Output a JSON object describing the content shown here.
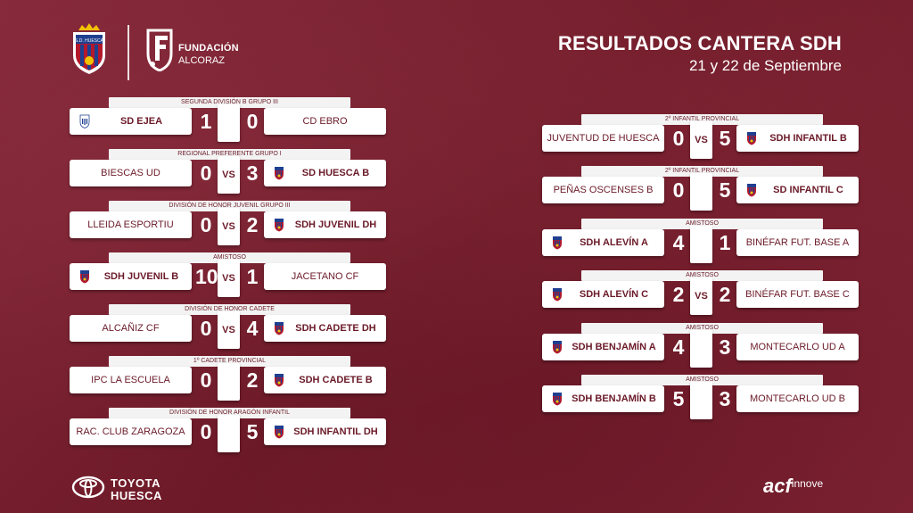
{
  "header": {
    "club_logo": "sd-huesca-crest",
    "club_logo_text": "S.D. HUESCA",
    "foundation_title": "FUNDACIÓN",
    "foundation_subtitle": "ALCORAZ",
    "title": "RESULTADOS CANTERA SDH",
    "date": "21 y 22 de Septiembre"
  },
  "colors": {
    "background": "#7a1f2c",
    "text_accent": "#6b1a28",
    "card": "#ffffff"
  },
  "left_column": [
    {
      "category": "SEGUNDA DIVISIÓN B GRUPO III",
      "home": "SD EJEA",
      "home_score": "1",
      "away": "CD EBRO",
      "away_score": "0",
      "vs": "",
      "home_crest": "ejea-crest",
      "away_crest": ""
    },
    {
      "category": "REGIONAL PREFERENTE GRUPO I",
      "home": "BIESCAS UD",
      "home_score": "0",
      "away": "SD HUESCA B",
      "away_score": "3",
      "vs": "VS",
      "home_crest": "",
      "away_crest": "sdh-crest"
    },
    {
      "category": "DIVISIÓN DE HONOR JUVENIL GRUPO III",
      "home": "LLEIDA ESPORTIU",
      "home_score": "0",
      "away": "SDH JUVENIL DH",
      "away_score": "2",
      "vs": "VS",
      "home_crest": "",
      "away_crest": "sdh-crest"
    },
    {
      "category": "AMISTOSO",
      "home": "SDH JUVENIL B",
      "home_score": "10",
      "away": "JACETANO CF",
      "away_score": "1",
      "vs": "VS",
      "home_crest": "sdh-crest",
      "away_crest": ""
    },
    {
      "category": "DIVISIÓN DE HONOR CADETE",
      "home": "ALCAÑIZ CF",
      "home_score": "0",
      "away": "SDH CADETE DH",
      "away_score": "4",
      "vs": "VS",
      "home_crest": "",
      "away_crest": "sdh-crest"
    },
    {
      "category": "1º CADETE PROVINCIAL",
      "home": "IPC LA ESCUELA",
      "home_score": "0",
      "away": "SDH CADETE B",
      "away_score": "2",
      "vs": "",
      "home_crest": "",
      "away_crest": "sdh-crest"
    },
    {
      "category": "DIVISIÓN DE HONOR ARAGÓN INFANTIL",
      "home": "RAC. CLUB ZARAGOZA",
      "home_score": "0",
      "away": "SDH INFANTIL DH",
      "away_score": "5",
      "vs": "",
      "home_crest": "",
      "away_crest": "sdh-crest"
    }
  ],
  "right_column": [
    {
      "category": "2º INFANTIL PROVINCIAL",
      "home": "JUVENTUD DE HUESCA",
      "home_score": "0",
      "away": "SDH INFANTIL B",
      "away_score": "5",
      "vs": "VS",
      "home_crest": "",
      "away_crest": "sdh-crest"
    },
    {
      "category": "2º INFANTIL PROVINCIAL",
      "home": "PEÑAS OSCENSES B",
      "home_score": "0",
      "away": "SD INFANTIL C",
      "away_score": "5",
      "vs": "",
      "home_crest": "",
      "away_crest": "sdh-crest"
    },
    {
      "category": "AMISTOSO",
      "home": "SDH ALEVÍN A",
      "home_score": "4",
      "away": "BINÉFAR FUT. BASE A",
      "away_score": "1",
      "vs": "",
      "home_crest": "sdh-crest",
      "away_crest": ""
    },
    {
      "category": "AMISTOSO",
      "home": "SDH ALEVÍN C",
      "home_score": "2",
      "away": "BINÉFAR FUT. BASE C",
      "away_score": "2",
      "vs": "VS",
      "home_crest": "sdh-crest",
      "away_crest": ""
    },
    {
      "category": "AMISTOSO",
      "home": "SDH BENJAMÍN A",
      "home_score": "4",
      "away": "MONTECARLO UD A",
      "away_score": "3",
      "vs": "",
      "home_crest": "sdh-crest",
      "away_crest": ""
    },
    {
      "category": "AMISTOSO",
      "home": "SDH BENJAMÍN B",
      "home_score": "5",
      "away": "MONTECARLO UD B",
      "away_score": "3",
      "vs": "",
      "home_crest": "sdh-crest",
      "away_crest": ""
    }
  ],
  "sponsors": {
    "toyota_line1": "TOYOTA",
    "toyota_line2": "HUESCA",
    "acf_main": "acf",
    "acf_sub": "innove"
  }
}
